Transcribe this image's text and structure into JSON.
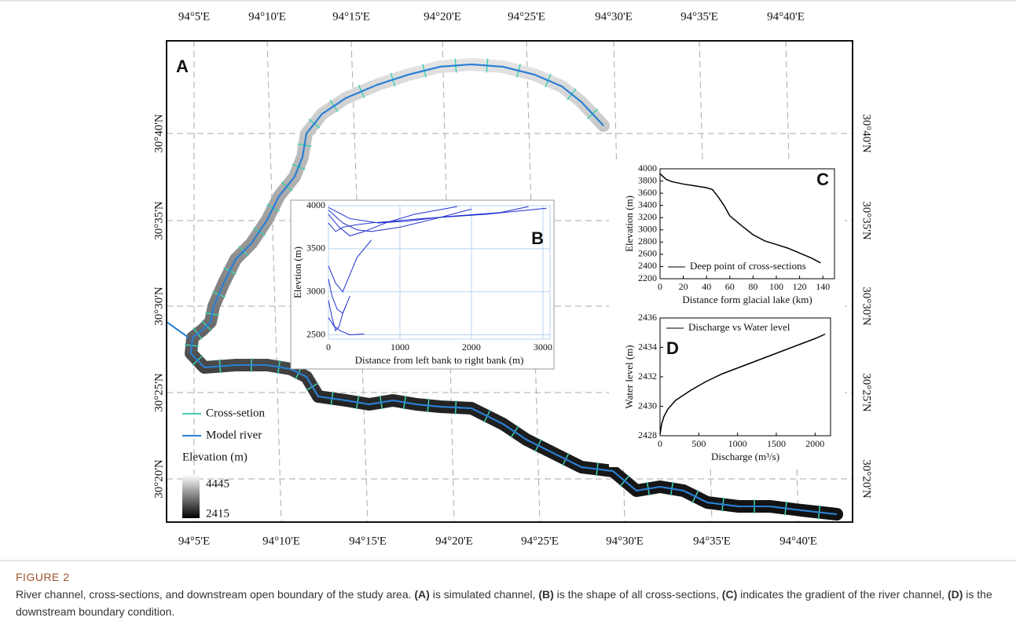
{
  "map": {
    "panel_label": "A",
    "lon_labels": [
      "94°5'E",
      "94°10'E",
      "94°15'E",
      "94°20'E",
      "94°25'E",
      "94°30'E",
      "94°35'E",
      "94°40'E"
    ],
    "lat_labels": [
      "30°40'N",
      "30°35'N",
      "30°30'N",
      "30°25'N",
      "30°20'N"
    ],
    "legend": [
      {
        "label": "Cross-setion",
        "color": "#3ed0b4"
      },
      {
        "label": "Model river",
        "color": "#2a7fd4"
      }
    ],
    "elevation_title": "Elevation (m)",
    "elevation_max": 4445,
    "elevation_min": 2415
  },
  "chart_data": [
    {
      "type": "line",
      "panel_label": "B",
      "xlabel": "Distance from left bank to right bank (m)",
      "ylabel": "Elevtion (m)",
      "color": "#1f2fd0",
      "grid": true,
      "xlim": [
        0,
        3100
      ],
      "ylim": [
        2450,
        4000
      ],
      "xticks": [
        0,
        1000,
        2000,
        3000
      ],
      "yticks": [
        2500,
        3000,
        3500,
        4000
      ],
      "series": [
        {
          "x": [
            0,
            200,
            400,
            600,
            1000,
            1500,
            2000
          ],
          "values": [
            3950,
            3800,
            3720,
            3700,
            3750,
            3850,
            3960
          ]
        },
        {
          "x": [
            0,
            150,
            300,
            500,
            800,
            1200,
            1800
          ],
          "values": [
            3900,
            3750,
            3650,
            3700,
            3800,
            3900,
            3990
          ]
        },
        {
          "x": [
            0,
            100,
            200,
            300,
            400,
            600
          ],
          "values": [
            3300,
            3100,
            3000,
            3200,
            3400,
            3600
          ]
        },
        {
          "x": [
            0,
            50,
            100,
            150,
            200,
            300
          ],
          "values": [
            2900,
            2700,
            2550,
            2600,
            2750,
            2950
          ]
        },
        {
          "x": [
            0,
            100,
            200,
            400,
            600,
            900,
            1300,
            2200,
            3050
          ],
          "values": [
            3800,
            3700,
            3750,
            3780,
            3800,
            3820,
            3850,
            3900,
            3970
          ]
        },
        {
          "x": [
            0,
            80,
            160,
            300,
            500
          ],
          "values": [
            2700,
            2600,
            2550,
            2500,
            2510
          ]
        },
        {
          "x": [
            0,
            300,
            700,
            1100,
            1600,
            2400,
            2800
          ],
          "values": [
            3980,
            3850,
            3800,
            3820,
            3870,
            3920,
            3990
          ]
        },
        {
          "x": [
            0,
            50,
            120,
            200,
            250
          ],
          "values": [
            3150,
            2950,
            2800,
            2750,
            2850
          ]
        }
      ]
    },
    {
      "type": "line",
      "panel_label": "C",
      "xlabel": "Distance form glacial lake (km)",
      "ylabel": "Elevation (m)",
      "grid": false,
      "xlim": [
        0,
        150
      ],
      "ylim": [
        2200,
        4000
      ],
      "xticks": [
        0,
        20,
        40,
        60,
        80,
        100,
        120,
        140
      ],
      "yticks": [
        2200,
        2400,
        2600,
        2800,
        3000,
        3200,
        3400,
        3600,
        3800,
        4000
      ],
      "series": [
        {
          "name": "Deep point of cross-sections",
          "color": "#000000",
          "x": [
            0,
            5,
            10,
            20,
            30,
            40,
            45,
            50,
            55,
            60,
            70,
            80,
            90,
            100,
            110,
            120,
            130,
            138
          ],
          "values": [
            3920,
            3830,
            3790,
            3750,
            3720,
            3690,
            3660,
            3540,
            3400,
            3230,
            3070,
            2920,
            2820,
            2760,
            2700,
            2620,
            2540,
            2460
          ]
        }
      ]
    },
    {
      "type": "line",
      "panel_label": "D",
      "xlabel": "Discharge (m³/s)",
      "ylabel": "Water level (m)",
      "grid": false,
      "xlim": [
        0,
        2200
      ],
      "ylim": [
        2428,
        2436
      ],
      "xticks": [
        0,
        500,
        1000,
        1500,
        2000
      ],
      "yticks": [
        2428,
        2430,
        2432,
        2434,
        2436
      ],
      "series": [
        {
          "name": "Discharge vs Water level",
          "color": "#000000",
          "x": [
            0,
            20,
            50,
            100,
            200,
            400,
            600,
            800,
            1000,
            1200,
            1400,
            1600,
            1800,
            2000,
            2130
          ],
          "values": [
            2428.1,
            2428.8,
            2429.3,
            2429.8,
            2430.4,
            2431.1,
            2431.7,
            2432.2,
            2432.6,
            2433.0,
            2433.4,
            2433.8,
            2434.2,
            2434.6,
            2434.9
          ]
        }
      ]
    }
  ],
  "caption": {
    "label": "FIGURE 2",
    "parts": [
      "River channel, cross-sections, and downstream open boundary of the study area. ",
      "(A)",
      " is simulated channel, ",
      "(B)",
      " is the shape of all cross-sections, ",
      "(C)",
      " indicates the gradient of the river channel, ",
      "(D)",
      " is the downstream boundary condition."
    ]
  }
}
